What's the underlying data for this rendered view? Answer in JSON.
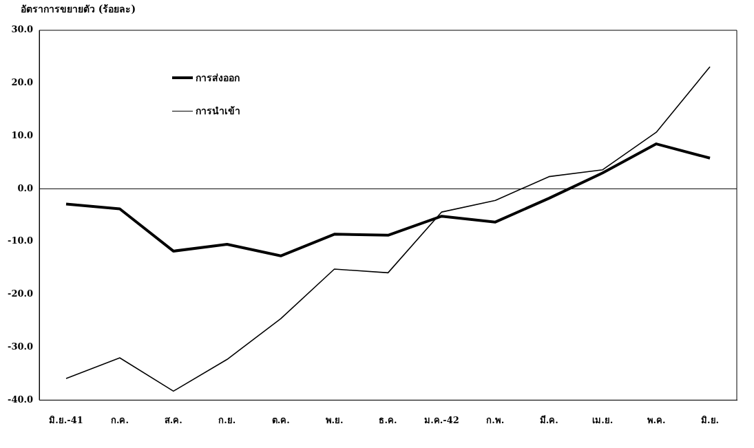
{
  "chart_data": {
    "type": "line",
    "ylabel": "อัตราการขยายตัว (ร้อยละ)",
    "categories": [
      "มิ.ย.-41",
      "ก.ค.",
      "ส.ค.",
      "ก.ย.",
      "ต.ค.",
      "พ.ย.",
      "ธ.ค.",
      "ม.ค.-42",
      "ก.พ.",
      "มี.ค.",
      "เม.ย.",
      "พ.ค.",
      "มิ.ย."
    ],
    "series": [
      {
        "name": "การส่งออก",
        "color": "#000000",
        "values": [
          -2.9,
          -3.8,
          -11.8,
          -10.5,
          -12.7,
          -8.6,
          -8.8,
          -5.2,
          -6.3,
          -1.8,
          3.0,
          8.5,
          5.8
        ]
      },
      {
        "name": "การนำเข้า",
        "color": "#000000",
        "values": [
          -35.9,
          -32.0,
          -38.3,
          -32.3,
          -24.6,
          -15.2,
          -15.9,
          -4.4,
          -2.2,
          2.3,
          3.6,
          10.7,
          23.1
        ]
      }
    ],
    "ylim": [
      -40,
      30
    ],
    "yticks": [
      {
        "value": -40,
        "label": "-40.0"
      },
      {
        "value": -30,
        "label": "-30.0"
      },
      {
        "value": -20,
        "label": "-20.0"
      },
      {
        "value": -10,
        "label": "-10.0"
      },
      {
        "value": 0,
        "label": "0.0"
      },
      {
        "value": 10,
        "label": "10.0"
      },
      {
        "value": 20,
        "label": "20.0"
      },
      {
        "value": 30,
        "label": "30.0"
      }
    ],
    "ref_lines": [
      {
        "axis": "y",
        "value": 0,
        "color": "#000000"
      }
    ],
    "grid": false,
    "legend": "top left",
    "marker": "none",
    "line_style": "solid"
  }
}
